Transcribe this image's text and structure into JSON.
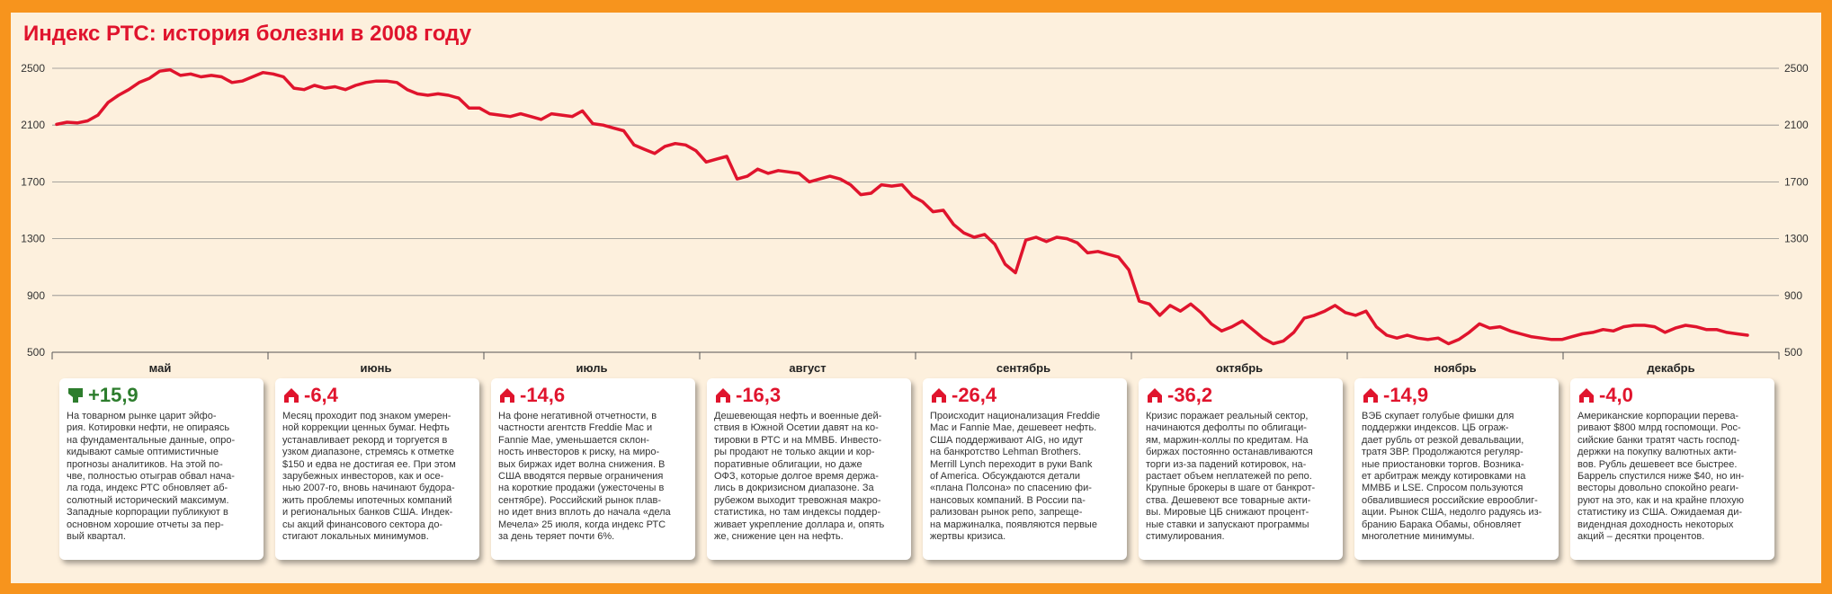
{
  "chart_data": {
    "type": "line",
    "title": "Индекс РТС: история болезни в 2008 году",
    "ylim": [
      500,
      2500
    ],
    "yticks": [
      "2500",
      "2100",
      "1700",
      "1300",
      "900",
      "500"
    ],
    "months": [
      "май",
      "июнь",
      "июль",
      "август",
      "сентябрь",
      "октябрь",
      "ноябрь",
      "декабрь"
    ],
    "grid": true,
    "series": [
      {
        "color": "#e0142d",
        "values": [
          2105,
          2120,
          2115,
          2130,
          2170,
          2260,
          2310,
          2350,
          2400,
          2430,
          2480,
          2490,
          2450,
          2460,
          2440,
          2450,
          2440,
          2400,
          2410,
          2440,
          2470,
          2460,
          2440,
          2360,
          2350,
          2380,
          2360,
          2370,
          2350,
          2380,
          2400,
          2410,
          2410,
          2400,
          2350,
          2320,
          2310,
          2320,
          2310,
          2290,
          2220,
          2220,
          2180,
          2170,
          2160,
          2180,
          2160,
          2140,
          2180,
          2170,
          2160,
          2200,
          2110,
          2100,
          2080,
          2060,
          1960,
          1930,
          1900,
          1950,
          1970,
          1960,
          1920,
          1840,
          1860,
          1880,
          1720,
          1740,
          1790,
          1760,
          1780,
          1770,
          1760,
          1700,
          1720,
          1740,
          1720,
          1680,
          1610,
          1620,
          1680,
          1670,
          1680,
          1600,
          1560,
          1490,
          1500,
          1400,
          1340,
          1310,
          1330,
          1260,
          1120,
          1060,
          1290,
          1310,
          1280,
          1310,
          1300,
          1270,
          1200,
          1210,
          1190,
          1170,
          1080,
          860,
          840,
          760,
          830,
          790,
          840,
          780,
          700,
          650,
          680,
          720,
          660,
          600,
          560,
          580,
          640,
          740,
          760,
          790,
          830,
          780,
          760,
          790,
          680,
          620,
          600,
          620,
          600,
          590,
          600,
          560,
          590,
          640,
          700,
          670,
          680,
          650,
          630,
          610,
          600,
          590,
          590,
          610,
          630,
          640,
          660,
          650,
          680,
          690,
          690,
          680,
          640,
          670,
          690,
          680,
          660,
          660,
          640,
          630,
          620
        ]
      }
    ]
  },
  "cards": [
    {
      "delta": "+15,9",
      "trend": "up",
      "text": "На товарном рынке царит эйфо-\nрия. Котировки нефти, не опираясь\nна фундаментальные данные, опро-\nкидывают самые оптимистичные\nпрогнозы аналитиков. На этой по-\nчве, полностью отыграв обвал нача-\nла года, индекс РТС обновляет аб-\nсолютный исторический максимум.\nЗападные корпорации публикуют в\nосновном хорошие отчеты за пер-\nвый квартал."
    },
    {
      "delta": "-6,4",
      "trend": "down",
      "text": "Месяц проходит под знаком умерен-\nной коррекции ценных бумаг. Нефть\nустанавливает рекорд и торгуется в\nузком диапазоне, стремясь к отметке\n$150 и едва не достигая ее. При этом\nзарубежных инвесторов, как и осе-\nнью 2007-го, вновь начинают будора-\nжить проблемы ипотечных компаний\nи региональных банков США. Индек-\nсы акций финансового сектора до-\nстигают локальных минимумов."
    },
    {
      "delta": "-14,6",
      "trend": "down",
      "text": "На фоне негативной отчетности, в\nчастности агентств Freddie Mac и\nFannie Mae, уменьшается склон-\nность инвесторов к риску, на миро-\nвых биржах идет волна снижения. В\nСША вводятся первые ограничения\nна короткие продажи (ужесточены в\nсентябре). Российский рынок плав-\nно идет вниз вплоть до начала «дела\nМечела» 25 июля, когда индекс РТС\nза день теряет почти 6%."
    },
    {
      "delta": "-16,3",
      "trend": "down",
      "text": "Дешевеющая нефть и военные дей-\nствия в Южной Осетии давят на ко-\nтировки в РТС и на ММВБ. Инвесто-\nры продают не только акции и кор-\nпоративные облигации, но даже\nОФЗ, которые долгое время держа-\nлись в докризисном диапазоне. За\nрубежом выходит тревожная макро-\nстатистика, но там индексы поддер-\nживает укрепление доллара и, опять\nже, снижение цен на нефть."
    },
    {
      "delta": "-26,4",
      "trend": "down",
      "text": "Происходит национализация Freddie\nMac и Fannie Mae, дешевеет нефть.\nСША поддерживают AIG, но идут\nна банкротство Lehman Brothers.\nMerrill Lynch переходит в руки Bank\nof America. Обсуждаются детали\n«плана Полсона» по спасению фи-\nнансовых компаний. В России па-\nрализован рынок репо, запреще-\nна маржиналка, появляются первые\nжертвы кризиса."
    },
    {
      "delta": "-36,2",
      "trend": "down",
      "text": "Кризис поражает реальный сектор,\nначинаются дефолты по облигаци-\nям, маржин-коллы по кредитам. На\nбиржах постоянно останавливаются\nторги из-за падений котировок, на-\nрастает объем неплатежей по репо.\nКрупные брокеры в шаге от банкрот-\nства. Дешевеют все товарные акти-\nвы. Мировые ЦБ снижают процент-\nные ставки и запускают программы\nстимулирования."
    },
    {
      "delta": "-14,9",
      "trend": "down",
      "text": "ВЭБ скупает голубые фишки для\nподдержки индексов. ЦБ ограж-\nдает рубль от резкой девальвации,\nтратя ЗВР. Продолжаются регуляр-\nные приостановки торгов. Возника-\nет арбитраж между котировками на\nММВБ и LSE. Спросом пользуются\nобвалившиеся российские еврооблиг-\nации. Рынок США, недолго радуясь из-\nбранию Барака Обамы, обновляет\nмноголетние минимумы."
    },
    {
      "delta": "-4,0",
      "trend": "down",
      "text": "Американские корпорации перева-\nривают $800 млрд госпомощи. Рос-\nсийские банки тратят часть господ-\nдержки на покупку валютных акти-\nвов. Рубль дешевеет все быстрее.\nБаррель спустился ниже $40, но ин-\nвесторы довольно спокойно реаги-\nруют на это, как и на крайне плохую\nстатистику из США. Ожидаемая ди-\nвидендная доходность некоторых\nакций – десятки процентов."
    }
  ]
}
